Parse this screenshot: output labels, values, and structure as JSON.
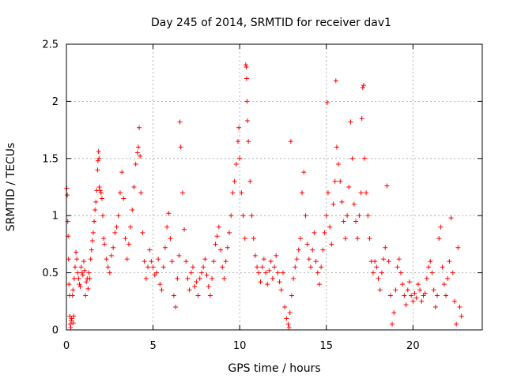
{
  "chart_data": {
    "type": "scatter",
    "title": "Day 245 of 2014, SRMTID for receiver dav1",
    "xlabel": "GPS time / hours",
    "ylabel": "SRMTID / TECUs",
    "xlim": [
      0,
      24
    ],
    "ylim": [
      0,
      2.5
    ],
    "x_ticks": [
      0,
      5,
      10,
      15,
      20
    ],
    "x_tick_labels": [
      "0",
      "5",
      "10",
      "15",
      "20"
    ],
    "y_ticks": [
      0,
      0.5,
      1,
      1.5,
      2,
      2.5
    ],
    "y_tick_labels": [
      "0",
      "0.5",
      "1",
      "1.5",
      "2",
      "2.5"
    ],
    "grid": true,
    "marker": "plus",
    "color": "#ff0000",
    "series": [
      {
        "name": "SRMTID",
        "points": [
          [
            0.02,
            1.24
          ],
          [
            0.05,
            1.18
          ],
          [
            0.08,
            0.95
          ],
          [
            0.1,
            0.82
          ],
          [
            0.12,
            0.62
          ],
          [
            0.15,
            0.4
          ],
          [
            0.18,
            0.3
          ],
          [
            0.2,
            0.12
          ],
          [
            0.22,
            0.05
          ],
          [
            0.25,
            0.02
          ],
          [
            0.28,
            0.08
          ],
          [
            0.3,
            0.1
          ],
          [
            0.35,
            0.3
          ],
          [
            0.38,
            0.35
          ],
          [
            0.4,
            0.06
          ],
          [
            0.42,
            0.12
          ],
          [
            0.45,
            0.45
          ],
          [
            0.5,
            0.55
          ],
          [
            0.55,
            0.68
          ],
          [
            0.6,
            0.62
          ],
          [
            0.65,
            0.5
          ],
          [
            0.7,
            0.45
          ],
          [
            0.75,
            0.4
          ],
          [
            0.8,
            0.38
          ],
          [
            0.85,
            0.55
          ],
          [
            0.9,
            0.5
          ],
          [
            0.95,
            0.48
          ],
          [
            1.0,
            0.6
          ],
          [
            1.05,
            0.52
          ],
          [
            1.1,
            0.3
          ],
          [
            1.15,
            0.42
          ],
          [
            1.2,
            0.45
          ],
          [
            1.25,
            0.36
          ],
          [
            1.3,
            0.5
          ],
          [
            1.35,
            0.45
          ],
          [
            1.4,
            0.62
          ],
          [
            1.45,
            0.7
          ],
          [
            1.5,
            0.78
          ],
          [
            1.55,
            0.85
          ],
          [
            1.6,
            0.95
          ],
          [
            1.65,
            1.05
          ],
          [
            1.7,
            1.12
          ],
          [
            1.75,
            1.22
          ],
          [
            1.8,
            1.4
          ],
          [
            1.82,
            1.48
          ],
          [
            1.85,
            1.56
          ],
          [
            1.88,
            1.5
          ],
          [
            1.9,
            1.25
          ],
          [
            1.95,
            1.22
          ],
          [
            2.0,
            1.2
          ],
          [
            2.05,
            1.15
          ],
          [
            2.1,
            1.0
          ],
          [
            2.15,
            0.8
          ],
          [
            2.2,
            0.75
          ],
          [
            2.3,
            0.62
          ],
          [
            2.4,
            0.55
          ],
          [
            2.5,
            0.5
          ],
          [
            2.6,
            0.65
          ],
          [
            2.7,
            0.72
          ],
          [
            2.8,
            0.85
          ],
          [
            2.9,
            0.9
          ],
          [
            3.0,
            1.0
          ],
          [
            3.1,
            1.2
          ],
          [
            3.2,
            1.38
          ],
          [
            3.3,
            1.15
          ],
          [
            3.4,
            0.8
          ],
          [
            3.5,
            0.62
          ],
          [
            3.6,
            0.75
          ],
          [
            3.7,
            0.9
          ],
          [
            3.8,
            1.05
          ],
          [
            3.9,
            1.25
          ],
          [
            4.0,
            1.45
          ],
          [
            4.1,
            1.55
          ],
          [
            4.15,
            1.6
          ],
          [
            4.2,
            1.77
          ],
          [
            4.25,
            1.52
          ],
          [
            4.3,
            1.2
          ],
          [
            4.4,
            0.85
          ],
          [
            4.5,
            0.6
          ],
          [
            4.6,
            0.45
          ],
          [
            4.7,
            0.55
          ],
          [
            4.8,
            0.7
          ],
          [
            4.9,
            0.6
          ],
          [
            5.0,
            0.55
          ],
          [
            5.1,
            0.48
          ],
          [
            5.2,
            0.5
          ],
          [
            5.3,
            0.62
          ],
          [
            5.4,
            0.4
          ],
          [
            5.5,
            0.35
          ],
          [
            5.6,
            0.55
          ],
          [
            5.7,
            0.72
          ],
          [
            5.8,
            0.9
          ],
          [
            5.9,
            1.02
          ],
          [
            6.0,
            0.8
          ],
          [
            6.1,
            0.6
          ],
          [
            6.2,
            0.3
          ],
          [
            6.3,
            0.2
          ],
          [
            6.4,
            0.45
          ],
          [
            6.5,
            0.65
          ],
          [
            6.55,
            1.82
          ],
          [
            6.6,
            1.6
          ],
          [
            6.7,
            1.2
          ],
          [
            6.8,
            0.88
          ],
          [
            6.9,
            0.6
          ],
          [
            7.0,
            0.45
          ],
          [
            7.1,
            0.35
          ],
          [
            7.2,
            0.5
          ],
          [
            7.3,
            0.55
          ],
          [
            7.4,
            0.38
          ],
          [
            7.5,
            0.42
          ],
          [
            7.6,
            0.3
          ],
          [
            7.7,
            0.45
          ],
          [
            7.8,
            0.5
          ],
          [
            7.9,
            0.55
          ],
          [
            8.0,
            0.62
          ],
          [
            8.1,
            0.48
          ],
          [
            8.2,
            0.38
          ],
          [
            8.3,
            0.3
          ],
          [
            8.4,
            0.45
          ],
          [
            8.5,
            0.6
          ],
          [
            8.6,
            0.75
          ],
          [
            8.7,
            0.82
          ],
          [
            8.8,
            0.9
          ],
          [
            8.9,
            0.7
          ],
          [
            9.0,
            0.55
          ],
          [
            9.1,
            0.45
          ],
          [
            9.2,
            0.6
          ],
          [
            9.3,
            0.72
          ],
          [
            9.4,
            0.85
          ],
          [
            9.5,
            1.0
          ],
          [
            9.6,
            1.2
          ],
          [
            9.7,
            1.3
          ],
          [
            9.8,
            1.45
          ],
          [
            9.9,
            1.65
          ],
          [
            9.95,
            1.77
          ],
          [
            10.0,
            1.5
          ],
          [
            10.1,
            1.2
          ],
          [
            10.2,
            1.0
          ],
          [
            10.3,
            0.8
          ],
          [
            10.35,
            2.32
          ],
          [
            10.38,
            2.3
          ],
          [
            10.4,
            2.2
          ],
          [
            10.42,
            2.0
          ],
          [
            10.45,
            1.83
          ],
          [
            10.5,
            1.65
          ],
          [
            10.6,
            1.3
          ],
          [
            10.7,
            1.0
          ],
          [
            10.8,
            0.8
          ],
          [
            10.9,
            0.65
          ],
          [
            11.0,
            0.55
          ],
          [
            11.1,
            0.5
          ],
          [
            11.2,
            0.42
          ],
          [
            11.3,
            0.55
          ],
          [
            11.4,
            0.62
          ],
          [
            11.5,
            0.5
          ],
          [
            11.6,
            0.4
          ],
          [
            11.7,
            0.52
          ],
          [
            11.8,
            0.6
          ],
          [
            11.9,
            0.45
          ],
          [
            12.0,
            0.55
          ],
          [
            12.1,
            0.65
          ],
          [
            12.2,
            0.5
          ],
          [
            12.3,
            0.42
          ],
          [
            12.4,
            0.35
          ],
          [
            12.5,
            0.5
          ],
          [
            12.6,
            0.2
          ],
          [
            12.7,
            0.1
          ],
          [
            12.8,
            0.05
          ],
          [
            12.85,
            0.02
          ],
          [
            12.9,
            0.15
          ],
          [
            12.95,
            1.65
          ],
          [
            13.0,
            0.3
          ],
          [
            13.1,
            0.45
          ],
          [
            13.2,
            0.55
          ],
          [
            13.3,
            0.62
          ],
          [
            13.4,
            0.7
          ],
          [
            13.5,
            0.8
          ],
          [
            13.6,
            1.2
          ],
          [
            13.7,
            1.38
          ],
          [
            13.8,
            1.0
          ],
          [
            13.9,
            0.75
          ],
          [
            14.0,
            0.62
          ],
          [
            14.1,
            0.55
          ],
          [
            14.2,
            0.7
          ],
          [
            14.3,
            0.85
          ],
          [
            14.4,
            0.6
          ],
          [
            14.5,
            0.5
          ],
          [
            14.6,
            0.4
          ],
          [
            14.7,
            0.55
          ],
          [
            14.8,
            0.7
          ],
          [
            14.9,
            0.85
          ],
          [
            15.0,
            1.0
          ],
          [
            15.05,
            1.99
          ],
          [
            15.1,
            1.2
          ],
          [
            15.2,
            0.9
          ],
          [
            15.3,
            0.75
          ],
          [
            15.4,
            1.1
          ],
          [
            15.5,
            1.3
          ],
          [
            15.55,
            2.18
          ],
          [
            15.6,
            1.6
          ],
          [
            15.7,
            1.45
          ],
          [
            15.8,
            1.3
          ],
          [
            15.9,
            1.12
          ],
          [
            16.0,
            0.95
          ],
          [
            16.1,
            0.8
          ],
          [
            16.2,
            1.0
          ],
          [
            16.3,
            1.25
          ],
          [
            16.4,
            1.82
          ],
          [
            16.5,
            1.5
          ],
          [
            16.6,
            1.1
          ],
          [
            16.7,
            0.95
          ],
          [
            16.8,
            0.8
          ],
          [
            16.9,
            1.0
          ],
          [
            17.0,
            1.2
          ],
          [
            17.05,
            1.85
          ],
          [
            17.1,
            2.12
          ],
          [
            17.15,
            2.14
          ],
          [
            17.2,
            1.5
          ],
          [
            17.3,
            1.2
          ],
          [
            17.4,
            1.0
          ],
          [
            17.5,
            0.8
          ],
          [
            17.6,
            0.6
          ],
          [
            17.7,
            0.5
          ],
          [
            17.8,
            0.6
          ],
          [
            17.9,
            0.55
          ],
          [
            18.0,
            0.45
          ],
          [
            18.1,
            0.35
          ],
          [
            18.2,
            0.5
          ],
          [
            18.3,
            0.62
          ],
          [
            18.4,
            0.72
          ],
          [
            18.5,
            1.26
          ],
          [
            18.6,
            0.6
          ],
          [
            18.7,
            0.3
          ],
          [
            18.8,
            0.05
          ],
          [
            18.9,
            0.15
          ],
          [
            19.0,
            0.35
          ],
          [
            19.1,
            0.55
          ],
          [
            19.2,
            0.62
          ],
          [
            19.3,
            0.5
          ],
          [
            19.4,
            0.4
          ],
          [
            19.5,
            0.3
          ],
          [
            19.6,
            0.22
          ],
          [
            19.7,
            0.35
          ],
          [
            19.8,
            0.42
          ],
          [
            19.9,
            0.3
          ],
          [
            20.0,
            0.25
          ],
          [
            20.1,
            0.32
          ],
          [
            20.2,
            0.28
          ],
          [
            20.3,
            0.4
          ],
          [
            20.4,
            0.35
          ],
          [
            20.5,
            0.25
          ],
          [
            20.6,
            0.3
          ],
          [
            20.7,
            0.32
          ],
          [
            20.8,
            0.45
          ],
          [
            20.9,
            0.55
          ],
          [
            21.0,
            0.6
          ],
          [
            21.1,
            0.5
          ],
          [
            21.2,
            0.35
          ],
          [
            21.3,
            0.2
          ],
          [
            21.4,
            0.3
          ],
          [
            21.5,
            0.8
          ],
          [
            21.6,
            0.9
          ],
          [
            21.7,
            0.55
          ],
          [
            21.8,
            0.4
          ],
          [
            21.9,
            0.3
          ],
          [
            22.0,
            0.45
          ],
          [
            22.1,
            0.6
          ],
          [
            22.2,
            0.98
          ],
          [
            22.3,
            0.5
          ],
          [
            22.4,
            0.25
          ],
          [
            22.5,
            0.05
          ],
          [
            22.6,
            0.72
          ],
          [
            22.7,
            0.2
          ],
          [
            22.8,
            0.12
          ]
        ]
      }
    ]
  }
}
